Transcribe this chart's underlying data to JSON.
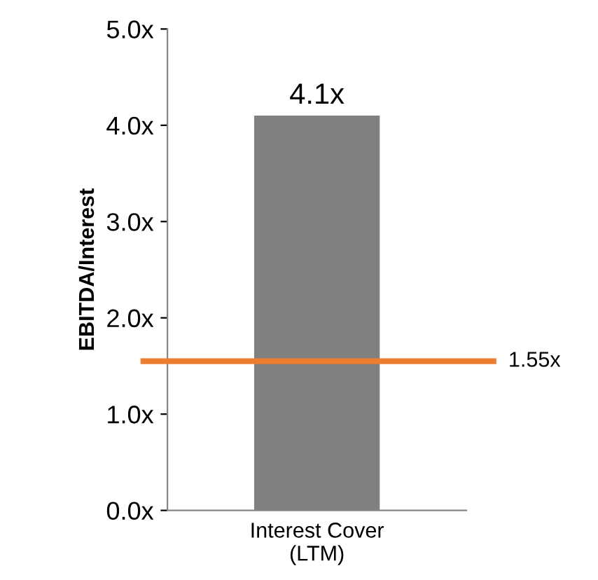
{
  "chart_data": {
    "type": "bar",
    "ylabel": "EBITDA/Interest",
    "categories": [
      "Interest Cover\n(LTM)"
    ],
    "values": [
      4.1
    ],
    "color": "#808080",
    "value_labels": [
      "4.1x"
    ],
    "ylim": [
      0,
      5
    ],
    "yticks": [
      {
        "value": 0,
        "label": "0.0x"
      },
      {
        "value": 1,
        "label": "1.0x"
      },
      {
        "value": 2,
        "label": "2.0x"
      },
      {
        "value": 3,
        "label": "3.0x"
      },
      {
        "value": 4,
        "label": "4.0x"
      },
      {
        "value": 5,
        "label": "5.0x"
      }
    ],
    "ref_lines": [
      {
        "axis": "y",
        "value": 1.55,
        "label": "1.55x",
        "color": "#ed7d31"
      }
    ],
    "grid": false,
    "legend": false
  }
}
